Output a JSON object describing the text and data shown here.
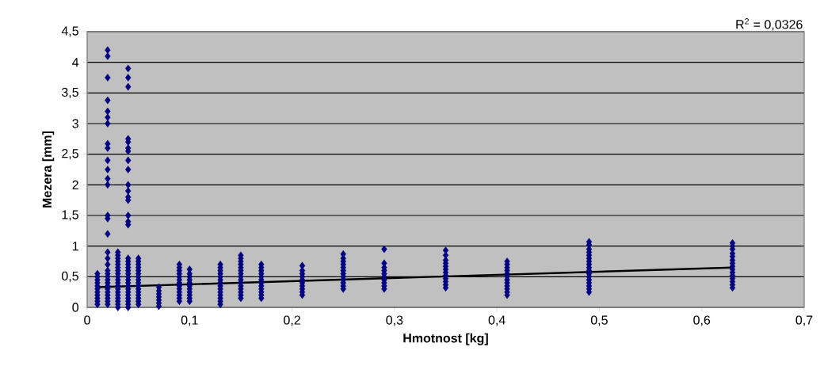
{
  "chart_data": {
    "type": "scatter",
    "xlabel": "Hmotnost [kg]",
    "ylabel": "Mezera [mm]",
    "annotations": [
      "R$^{2}$ = 0,0326"
    ],
    "xlim": [
      0,
      0.7
    ],
    "ylim": [
      0,
      4.5
    ],
    "xticks": [
      0,
      {
        "value": 0.1,
        "label": "0,1"
      },
      {
        "value": 0.2,
        "label": "0,2"
      },
      {
        "value": 0.3,
        "label": "0,3"
      },
      {
        "value": 0.4,
        "label": "0,4"
      },
      {
        "value": 0.5,
        "label": "0,5"
      },
      {
        "value": 0.6,
        "label": "0,6"
      },
      {
        "value": 0.7,
        "label": "0,7"
      }
    ],
    "yticks": [
      0,
      {
        "value": 0.5,
        "label": "0,5"
      },
      1,
      {
        "value": 1.5,
        "label": "1,5"
      },
      2,
      {
        "value": 2.5,
        "label": "2,5"
      },
      3,
      {
        "value": 3.5,
        "label": "3,5"
      },
      4,
      {
        "value": 4.5,
        "label": "4,5"
      }
    ],
    "grid": "y",
    "marker": "diamond",
    "series": [
      {
        "color": "#000080",
        "x": [
          0.01,
          0.01,
          0.01,
          0.01,
          0.01,
          0.01,
          0.01,
          0.01,
          0.01,
          0.01,
          0.01
        ],
        "values": [
          0.05,
          0.1,
          0.15,
          0.2,
          0.25,
          0.3,
          0.35,
          0.4,
          0.45,
          0.5,
          0.55
        ]
      },
      {
        "color": "#000080",
        "x": [
          0.02,
          0.02,
          0.02,
          0.02,
          0.02,
          0.02,
          0.02,
          0.02,
          0.02,
          0.02,
          0.02,
          0.02,
          0.02,
          0.02,
          0.02,
          0.02,
          0.02,
          0.02,
          0.02,
          0.02,
          0.02,
          0.02,
          0.02,
          0.02,
          0.02,
          0.02,
          0.02,
          0.02,
          0.02,
          0.02,
          0.02
        ],
        "values": [
          0.05,
          0.1,
          0.15,
          0.2,
          0.25,
          0.3,
          0.35,
          0.4,
          0.45,
          0.5,
          0.55,
          0.6,
          0.7,
          0.8,
          0.9,
          1.2,
          1.45,
          1.5,
          2.0,
          2.1,
          2.25,
          2.4,
          2.6,
          2.67,
          3.0,
          3.1,
          3.2,
          3.38,
          3.75,
          4.1,
          4.2
        ]
      },
      {
        "color": "#000080",
        "x": [
          0.03,
          0.03,
          0.03,
          0.03,
          0.03,
          0.03,
          0.03,
          0.03,
          0.03,
          0.03,
          0.03,
          0.03,
          0.03,
          0.03,
          0.03,
          0.03,
          0.03,
          0.03,
          0.03
        ],
        "values": [
          0,
          0.05,
          0.1,
          0.15,
          0.2,
          0.25,
          0.3,
          0.35,
          0.4,
          0.45,
          0.5,
          0.55,
          0.6,
          0.65,
          0.7,
          0.75,
          0.8,
          0.85,
          0.9
        ]
      },
      {
        "color": "#000080",
        "x": [
          0.04,
          0.04,
          0.04,
          0.04,
          0.04,
          0.04,
          0.04,
          0.04,
          0.04,
          0.04,
          0.04,
          0.04,
          0.04,
          0.04,
          0.04,
          0.04,
          0.04,
          0.04,
          0.04,
          0.04,
          0.04,
          0.04,
          0.04,
          0.04,
          0.04,
          0.04,
          0.04,
          0.04,
          0.04,
          0.04,
          0.04,
          0.04,
          0.04
        ],
        "values": [
          0,
          0.05,
          0.1,
          0.15,
          0.2,
          0.25,
          0.3,
          0.35,
          0.4,
          0.45,
          0.5,
          0.55,
          0.6,
          0.65,
          0.7,
          0.75,
          0.8,
          1.35,
          1.4,
          1.5,
          1.75,
          1.8,
          1.9,
          2.0,
          2.25,
          2.4,
          2.55,
          2.6,
          2.7,
          2.75,
          3.6,
          3.75,
          3.9
        ]
      },
      {
        "color": "#000080",
        "x": [
          0.05,
          0.05,
          0.05,
          0.05,
          0.05,
          0.05,
          0.05,
          0.05,
          0.05,
          0.05,
          0.05,
          0.05,
          0.05,
          0.05,
          0.05,
          0.05
        ],
        "values": [
          0.05,
          0.1,
          0.15,
          0.2,
          0.25,
          0.3,
          0.35,
          0.4,
          0.45,
          0.5,
          0.55,
          0.6,
          0.65,
          0.7,
          0.75,
          0.8
        ]
      },
      {
        "color": "#000080",
        "x": [
          0.07,
          0.07,
          0.07,
          0.07,
          0.07,
          0.07,
          0.07
        ],
        "values": [
          0.02,
          0.07,
          0.12,
          0.17,
          0.22,
          0.27,
          0.33
        ]
      },
      {
        "color": "#000080",
        "x": [
          0.09,
          0.09,
          0.09,
          0.09,
          0.09,
          0.09,
          0.09,
          0.09,
          0.09,
          0.09,
          0.09,
          0.09,
          0.09
        ],
        "values": [
          0.1,
          0.15,
          0.2,
          0.25,
          0.3,
          0.35,
          0.4,
          0.45,
          0.5,
          0.55,
          0.6,
          0.65,
          0.7
        ]
      },
      {
        "color": "#000080",
        "x": [
          0.1,
          0.1,
          0.1,
          0.1,
          0.1,
          0.1,
          0.1,
          0.1,
          0.1,
          0.1,
          0.1
        ],
        "values": [
          0.1,
          0.15,
          0.2,
          0.25,
          0.3,
          0.35,
          0.4,
          0.45,
          0.5,
          0.55,
          0.62
        ]
      },
      {
        "color": "#000080",
        "x": [
          0.13,
          0.13,
          0.13,
          0.13,
          0.13,
          0.13,
          0.13,
          0.13,
          0.13,
          0.13,
          0.13,
          0.13,
          0.13,
          0.13
        ],
        "values": [
          0.05,
          0.1,
          0.15,
          0.2,
          0.25,
          0.3,
          0.35,
          0.4,
          0.45,
          0.5,
          0.55,
          0.6,
          0.65,
          0.7
        ]
      },
      {
        "color": "#000080",
        "x": [
          0.15,
          0.15,
          0.15,
          0.15,
          0.15,
          0.15,
          0.15,
          0.15,
          0.15,
          0.15,
          0.15,
          0.15,
          0.15,
          0.15,
          0.15
        ],
        "values": [
          0.15,
          0.2,
          0.25,
          0.3,
          0.35,
          0.4,
          0.45,
          0.5,
          0.55,
          0.6,
          0.65,
          0.7,
          0.75,
          0.8,
          0.85
        ]
      },
      {
        "color": "#000080",
        "x": [
          0.17,
          0.17,
          0.17,
          0.17,
          0.17,
          0.17,
          0.17,
          0.17,
          0.17,
          0.17,
          0.17,
          0.17
        ],
        "values": [
          0.15,
          0.2,
          0.25,
          0.3,
          0.35,
          0.4,
          0.45,
          0.5,
          0.55,
          0.6,
          0.65,
          0.7
        ]
      },
      {
        "color": "#000080",
        "x": [
          0.21,
          0.21,
          0.21,
          0.21,
          0.21,
          0.21,
          0.21,
          0.21,
          0.21,
          0.21
        ],
        "values": [
          0.2,
          0.25,
          0.3,
          0.35,
          0.4,
          0.45,
          0.5,
          0.55,
          0.6,
          0.68
        ]
      },
      {
        "color": "#000080",
        "x": [
          0.25,
          0.25,
          0.25,
          0.25,
          0.25,
          0.25,
          0.25,
          0.25,
          0.25,
          0.25,
          0.25,
          0.25
        ],
        "values": [
          0.3,
          0.35,
          0.4,
          0.45,
          0.5,
          0.55,
          0.6,
          0.65,
          0.7,
          0.75,
          0.8,
          0.87
        ]
      },
      {
        "color": "#000080",
        "x": [
          0.29,
          0.29,
          0.29,
          0.29,
          0.29,
          0.29,
          0.29,
          0.29,
          0.29,
          0.29
        ],
        "values": [
          0.3,
          0.35,
          0.4,
          0.45,
          0.5,
          0.55,
          0.6,
          0.65,
          0.72,
          0.95
        ]
      },
      {
        "color": "#000080",
        "x": [
          0.35,
          0.35,
          0.35,
          0.35,
          0.35,
          0.35,
          0.35,
          0.35,
          0.35,
          0.35,
          0.35,
          0.35
        ],
        "values": [
          0.32,
          0.37,
          0.42,
          0.47,
          0.52,
          0.57,
          0.62,
          0.67,
          0.72,
          0.77,
          0.85,
          0.93
        ]
      },
      {
        "color": "#000080",
        "x": [
          0.41,
          0.41,
          0.41,
          0.41,
          0.41,
          0.41,
          0.41,
          0.41,
          0.41,
          0.41,
          0.41,
          0.41
        ],
        "values": [
          0.2,
          0.25,
          0.3,
          0.35,
          0.4,
          0.45,
          0.5,
          0.55,
          0.6,
          0.65,
          0.7,
          0.75
        ]
      },
      {
        "color": "#000080",
        "x": [
          0.49,
          0.49,
          0.49,
          0.49,
          0.49,
          0.49,
          0.49,
          0.49,
          0.49,
          0.49,
          0.49,
          0.49,
          0.49,
          0.49,
          0.49,
          0.49,
          0.49
        ],
        "values": [
          0.25,
          0.3,
          0.35,
          0.4,
          0.45,
          0.5,
          0.55,
          0.6,
          0.65,
          0.7,
          0.75,
          0.8,
          0.85,
          0.9,
          0.95,
          1.02,
          1.07
        ]
      },
      {
        "color": "#000080",
        "x": [
          0.63,
          0.63,
          0.63,
          0.63,
          0.63,
          0.63,
          0.63,
          0.63,
          0.63,
          0.63,
          0.63,
          0.63,
          0.63,
          0.63,
          0.63
        ],
        "values": [
          0.32,
          0.37,
          0.42,
          0.47,
          0.52,
          0.57,
          0.62,
          0.67,
          0.72,
          0.77,
          0.83,
          0.88,
          0.95,
          1.0,
          1.05
        ]
      },
      {
        "type": "line",
        "marker": "none",
        "color": "#000000",
        "x": [
          0.01,
          0.63
        ],
        "values": [
          0.33,
          0.65
        ]
      }
    ]
  }
}
